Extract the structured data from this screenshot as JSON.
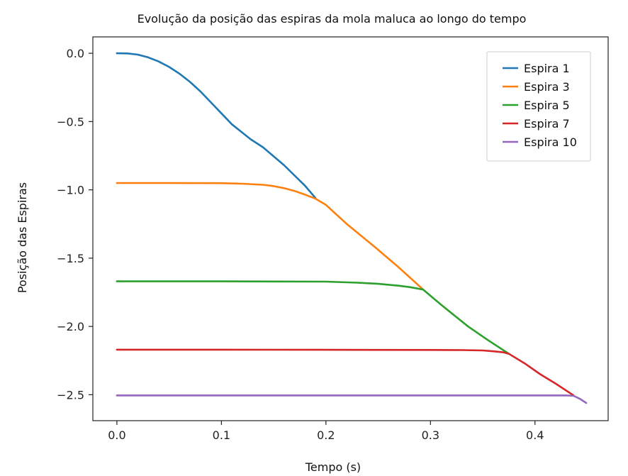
{
  "chart_data": {
    "type": "line",
    "title": "Evolução da posição das espiras da mola maluca ao longo do tempo",
    "xlabel": "Tempo (s)",
    "ylabel": "Posição das Espiras",
    "xlim": [
      -0.023,
      0.47
    ],
    "ylim": [
      -2.69,
      0.12
    ],
    "xticks": [
      0.0,
      0.1,
      0.2,
      0.3,
      0.4
    ],
    "xtick_labels": [
      "0.0",
      "0.1",
      "0.2",
      "0.3",
      "0.4"
    ],
    "yticks": [
      0.0,
      -0.5,
      -1.0,
      -1.5,
      -2.0,
      -2.5
    ],
    "ytick_labels": [
      "0.0",
      "−0.5",
      "−1.0",
      "−1.5",
      "−2.0",
      "−2.5"
    ],
    "grid": false,
    "legend_position": "top-right",
    "series": [
      {
        "name": "Espira 1",
        "color": "#1f77b4",
        "x": [
          0.0,
          0.01,
          0.02,
          0.03,
          0.04,
          0.05,
          0.06,
          0.07,
          0.08,
          0.09,
          0.1,
          0.11,
          0.128,
          0.14,
          0.16,
          0.18,
          0.19
        ],
        "y": [
          0.0,
          -0.001,
          -0.01,
          -0.03,
          -0.06,
          -0.1,
          -0.15,
          -0.21,
          -0.28,
          -0.36,
          -0.44,
          -0.52,
          -0.63,
          -0.69,
          -0.82,
          -0.97,
          -1.06
        ]
      },
      {
        "name": "Espira 3",
        "color": "#ff7f0e",
        "x": [
          0.0,
          0.05,
          0.1,
          0.12,
          0.14,
          0.15,
          0.16,
          0.17,
          0.18,
          0.19,
          0.2,
          0.22,
          0.247,
          0.27,
          0.293
        ],
        "y": [
          -0.95,
          -0.95,
          -0.951,
          -0.955,
          -0.963,
          -0.973,
          -0.988,
          -1.008,
          -1.035,
          -1.065,
          -1.11,
          -1.25,
          -1.42,
          -1.57,
          -1.73
        ]
      },
      {
        "name": "Espira 5",
        "color": "#2ca02c",
        "x": [
          0.0,
          0.1,
          0.2,
          0.23,
          0.25,
          0.27,
          0.28,
          0.293,
          0.31,
          0.336,
          0.355,
          0.375
        ],
        "y": [
          -1.67,
          -1.67,
          -1.672,
          -1.68,
          -1.688,
          -1.702,
          -1.712,
          -1.73,
          -1.84,
          -2.0,
          -2.1,
          -2.2
        ]
      },
      {
        "name": "Espira 7",
        "color": "#d62728",
        "x": [
          0.0,
          0.1,
          0.2,
          0.3,
          0.33,
          0.35,
          0.36,
          0.37,
          0.375,
          0.39,
          0.405,
          0.42,
          0.437
        ],
        "y": [
          -2.17,
          -2.17,
          -2.171,
          -2.172,
          -2.173,
          -2.176,
          -2.182,
          -2.19,
          -2.2,
          -2.27,
          -2.35,
          -2.42,
          -2.505
        ]
      },
      {
        "name": "Espira 10",
        "color": "#9467bd",
        "x": [
          0.0,
          0.1,
          0.2,
          0.3,
          0.4,
          0.43,
          0.437,
          0.443,
          0.449
        ],
        "y": [
          -2.505,
          -2.505,
          -2.505,
          -2.505,
          -2.505,
          -2.505,
          -2.508,
          -2.53,
          -2.56
        ]
      }
    ]
  }
}
